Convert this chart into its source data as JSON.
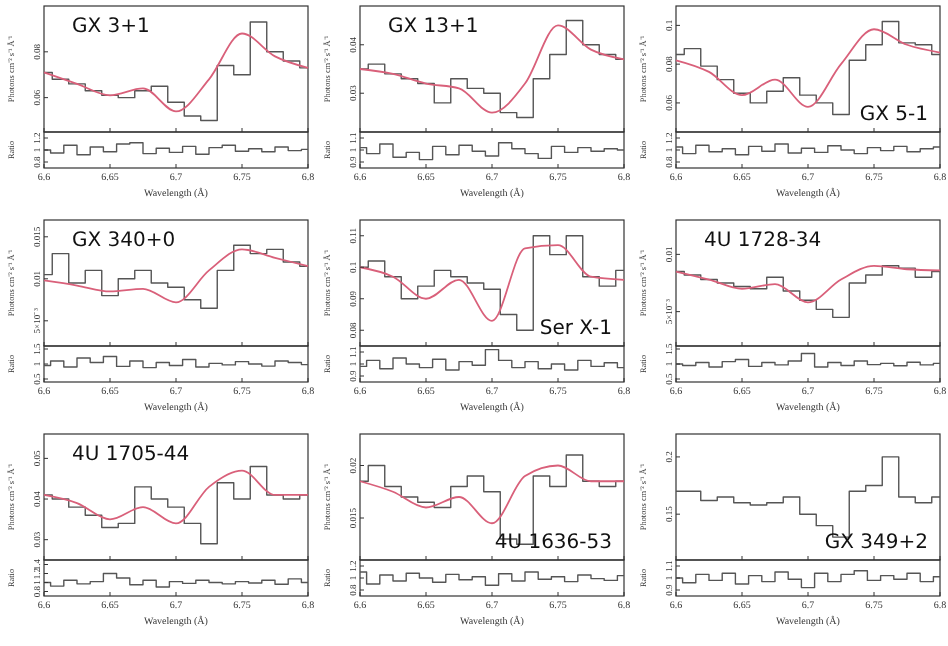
{
  "chart_data": [
    {
      "type": "step",
      "title": "GX 3+1",
      "ylabel": "Photons cm⁻² s⁻¹ Å⁻¹",
      "xlim": [
        6.6,
        6.8
      ],
      "xticks": [
        6.6,
        6.65,
        6.7,
        6.75,
        6.8
      ],
      "tick_labels": "y",
      "ylim": [
        0.045,
        0.1
      ],
      "yticks": [
        0.06,
        0.08
      ],
      "x": [
        6.6,
        6.6125,
        6.625,
        6.6375,
        6.65,
        6.6625,
        6.675,
        6.6875,
        6.7,
        6.7125,
        6.725,
        6.7375,
        6.75,
        6.7625,
        6.775,
        6.7875,
        6.8
      ],
      "series": [
        {
          "type": "step",
          "color": "#555555",
          "values": [
            0.071,
            0.068,
            0.066,
            0.063,
            0.061,
            0.06,
            0.063,
            0.065,
            0.058,
            0.052,
            0.05,
            0.074,
            0.07,
            0.093,
            0.08,
            0.076,
            0.073
          ]
        },
        {
          "type": "line",
          "color": "#d9607a",
          "x": [
            6.6,
            6.625,
            6.65,
            6.675,
            6.7,
            6.725,
            6.75,
            6.775,
            6.8
          ],
          "values": [
            0.071,
            0.066,
            0.061,
            0.064,
            0.054,
            0.068,
            0.088,
            0.078,
            0.073
          ]
        }
      ]
    },
    {
      "type": "step",
      "ylabel": "Ratio",
      "xlabel": "Wavelength (Å)",
      "xlim": [
        6.6,
        6.8
      ],
      "xticks": [
        6.6,
        6.65,
        6.7,
        6.75,
        6.8
      ],
      "ylim": [
        0.7,
        1.3
      ],
      "yticks": [
        0.8,
        1,
        1.2
      ],
      "x": [
        6.6,
        6.61,
        6.62,
        6.63,
        6.64,
        6.65,
        6.66,
        6.67,
        6.68,
        6.69,
        6.7,
        6.71,
        6.72,
        6.73,
        6.74,
        6.75,
        6.76,
        6.77,
        6.78,
        6.79,
        6.8
      ],
      "series": [
        {
          "type": "step",
          "color": "#555555",
          "values": [
            1,
            0.95,
            1.08,
            0.92,
            1.05,
            0.97,
            1.1,
            1.12,
            0.94,
            1.03,
            0.96,
            1.06,
            0.93,
            1.04,
            1.08,
            0.98,
            1.02,
            0.97,
            1.05,
            0.99,
            1.01
          ]
        }
      ]
    },
    {
      "type": "step",
      "title": "GX 13+1",
      "ylabel": "Photons cm⁻² s⁻¹ Å⁻¹",
      "xlim": [
        6.6,
        6.8
      ],
      "xticks": [
        6.6,
        6.65,
        6.7,
        6.75,
        6.8
      ],
      "tick_labels": "y",
      "ylim": [
        0.022,
        0.048
      ],
      "yticks": [
        0.03,
        0.04
      ],
      "x": [
        6.6,
        6.6125,
        6.625,
        6.6375,
        6.65,
        6.6625,
        6.675,
        6.6875,
        6.7,
        6.7125,
        6.725,
        6.7375,
        6.75,
        6.7625,
        6.775,
        6.7875,
        6.8
      ],
      "series": [
        {
          "type": "step",
          "color": "#555555",
          "values": [
            0.035,
            0.036,
            0.034,
            0.033,
            0.032,
            0.028,
            0.033,
            0.031,
            0.03,
            0.026,
            0.025,
            0.033,
            0.038,
            0.045,
            0.04,
            0.038,
            0.037
          ]
        },
        {
          "type": "line",
          "color": "#d9607a",
          "x": [
            6.6,
            6.625,
            6.65,
            6.675,
            6.7,
            6.725,
            6.75,
            6.775,
            6.8
          ],
          "values": [
            0.035,
            0.034,
            0.032,
            0.031,
            0.026,
            0.032,
            0.044,
            0.039,
            0.037
          ]
        }
      ]
    },
    {
      "type": "step",
      "ylabel": "Ratio",
      "xlabel": "Wavelength (Å)",
      "xlim": [
        6.6,
        6.8
      ],
      "xticks": [
        6.6,
        6.65,
        6.7,
        6.75,
        6.8
      ],
      "ylim": [
        0.85,
        1.15
      ],
      "yticks": [
        0.9,
        1,
        1.1
      ],
      "x": [
        6.6,
        6.61,
        6.62,
        6.63,
        6.64,
        6.65,
        6.66,
        6.67,
        6.68,
        6.69,
        6.7,
        6.71,
        6.72,
        6.73,
        6.74,
        6.75,
        6.76,
        6.77,
        6.78,
        6.79,
        6.8
      ],
      "series": [
        {
          "type": "step",
          "color": "#555555",
          "values": [
            1.02,
            0.97,
            1.05,
            0.94,
            0.98,
            0.92,
            1.03,
            0.96,
            1.04,
            0.99,
            0.95,
            1.06,
            1.01,
            0.97,
            0.93,
            1.03,
            0.98,
            1.02,
            0.99,
            1.01,
            1
          ]
        }
      ]
    },
    {
      "type": "step",
      "title": "GX 5-1",
      "ylabel": "Photons cm⁻² s⁻¹ Å⁻¹",
      "xlim": [
        6.6,
        6.8
      ],
      "xticks": [
        6.6,
        6.65,
        6.7,
        6.75,
        6.8
      ],
      "tick_labels": "y",
      "ylim": [
        0.045,
        0.11
      ],
      "yticks": [
        0.06,
        0.08,
        0.1
      ],
      "x": [
        6.6,
        6.6125,
        6.625,
        6.6375,
        6.65,
        6.6625,
        6.675,
        6.6875,
        6.7,
        6.7125,
        6.725,
        6.7375,
        6.75,
        6.7625,
        6.775,
        6.7875,
        6.8
      ],
      "series": [
        {
          "type": "step",
          "color": "#555555",
          "values": [
            0.085,
            0.088,
            0.079,
            0.072,
            0.065,
            0.06,
            0.066,
            0.073,
            0.064,
            0.06,
            0.054,
            0.082,
            0.09,
            0.102,
            0.091,
            0.09,
            0.085
          ]
        },
        {
          "type": "line",
          "color": "#d9607a",
          "x": [
            6.6,
            6.625,
            6.65,
            6.675,
            6.7,
            6.725,
            6.75,
            6.775,
            6.8
          ],
          "values": [
            0.082,
            0.076,
            0.064,
            0.072,
            0.058,
            0.08,
            0.098,
            0.09,
            0.086
          ]
        }
      ]
    },
    {
      "type": "step",
      "ylabel": "Ratio",
      "xlabel": "Wavelength (Å)",
      "xlim": [
        6.6,
        6.8
      ],
      "xticks": [
        6.6,
        6.65,
        6.7,
        6.75,
        6.8
      ],
      "ylim": [
        0.7,
        1.3
      ],
      "yticks": [
        0.8,
        1,
        1.2
      ],
      "x": [
        6.6,
        6.61,
        6.62,
        6.63,
        6.64,
        6.65,
        6.66,
        6.67,
        6.68,
        6.69,
        6.7,
        6.71,
        6.72,
        6.73,
        6.74,
        6.75,
        6.76,
        6.77,
        6.78,
        6.79,
        6.8
      ],
      "series": [
        {
          "type": "step",
          "color": "#555555",
          "values": [
            1.05,
            0.94,
            1.08,
            0.97,
            1.02,
            0.92,
            1.06,
            0.98,
            1.1,
            0.95,
            1.03,
            0.96,
            1.07,
            1,
            0.94,
            1.04,
            0.99,
            1.06,
            0.97,
            1.02,
            1.05
          ]
        }
      ]
    },
    {
      "type": "step",
      "title": "GX 340+0",
      "ylabel": "Photons cm⁻² s⁻¹ Å⁻¹",
      "xlim": [
        6.6,
        6.8
      ],
      "xticks": [
        6.6,
        6.65,
        6.7,
        6.75,
        6.8
      ],
      "tick_labels": "y",
      "ylim": [
        0.002,
        0.017
      ],
      "yticks": [
        {
          "value": 0.005,
          "label": "5×10⁻³"
        },
        0.01,
        0.015
      ],
      "x": [
        6.6,
        6.6125,
        6.625,
        6.6375,
        6.65,
        6.6625,
        6.675,
        6.6875,
        6.7,
        6.7125,
        6.725,
        6.7375,
        6.75,
        6.7625,
        6.775,
        6.7875,
        6.8
      ],
      "series": [
        {
          "type": "step",
          "color": "#555555",
          "values": [
            0.0105,
            0.013,
            0.0095,
            0.011,
            0.008,
            0.01,
            0.011,
            0.0095,
            0.009,
            0.0075,
            0.0065,
            0.011,
            0.014,
            0.013,
            0.0135,
            0.012,
            0.0115
          ]
        },
        {
          "type": "line",
          "color": "#d9607a",
          "x": [
            6.6,
            6.625,
            6.65,
            6.675,
            6.7,
            6.725,
            6.75,
            6.775,
            6.8
          ],
          "values": [
            0.0098,
            0.0092,
            0.0085,
            0.0088,
            0.0072,
            0.011,
            0.0135,
            0.0125,
            0.0115
          ]
        }
      ]
    },
    {
      "type": "step",
      "ylabel": "Ratio",
      "xlabel": "Wavelength (Å)",
      "xlim": [
        6.6,
        6.8
      ],
      "xticks": [
        6.6,
        6.65,
        6.7,
        6.75,
        6.8
      ],
      "ylim": [
        0.4,
        1.6
      ],
      "yticks": [
        0.5,
        1,
        1.5
      ],
      "x": [
        6.6,
        6.61,
        6.62,
        6.63,
        6.64,
        6.65,
        6.66,
        6.67,
        6.68,
        6.69,
        6.7,
        6.71,
        6.72,
        6.73,
        6.74,
        6.75,
        6.76,
        6.77,
        6.78,
        6.79,
        6.8
      ],
      "series": [
        {
          "type": "step",
          "color": "#555555",
          "values": [
            0.95,
            1.1,
            0.9,
            1.2,
            1.05,
            1.25,
            0.92,
            1.1,
            0.88,
            1.05,
            0.95,
            1.15,
            0.9,
            1.02,
            0.97,
            1.08,
            1,
            0.93,
            1.1,
            1.05,
            0.98
          ]
        }
      ]
    },
    {
      "type": "step",
      "title": "Ser X-1",
      "ylabel": "Photons cm⁻² s⁻¹ Å⁻¹",
      "xlim": [
        6.6,
        6.8
      ],
      "xticks": [
        6.6,
        6.65,
        6.7,
        6.75,
        6.8
      ],
      "tick_labels": "y",
      "ylim": [
        0.075,
        0.115
      ],
      "yticks": [
        0.08,
        0.09,
        0.1,
        0.11
      ],
      "x": [
        6.6,
        6.6125,
        6.625,
        6.6375,
        6.65,
        6.6625,
        6.675,
        6.6875,
        6.7,
        6.7125,
        6.725,
        6.7375,
        6.75,
        6.7625,
        6.775,
        6.7875,
        6.8
      ],
      "series": [
        {
          "type": "step",
          "color": "#555555",
          "values": [
            0.1,
            0.102,
            0.097,
            0.09,
            0.094,
            0.099,
            0.097,
            0.095,
            0.093,
            0.085,
            0.08,
            0.11,
            0.104,
            0.11,
            0.097,
            0.094,
            0.099
          ]
        },
        {
          "type": "line",
          "color": "#d9607a",
          "x": [
            6.6,
            6.625,
            6.65,
            6.675,
            6.7,
            6.725,
            6.75,
            6.775,
            6.8
          ],
          "values": [
            0.1,
            0.097,
            0.09,
            0.096,
            0.083,
            0.106,
            0.107,
            0.097,
            0.096
          ]
        }
      ]
    },
    {
      "type": "step",
      "ylabel": "Ratio",
      "xlabel": "Wavelength (Å)",
      "xlim": [
        6.6,
        6.8
      ],
      "xticks": [
        6.6,
        6.65,
        6.7,
        6.75,
        6.8
      ],
      "ylim": [
        0.85,
        1.15
      ],
      "yticks": [
        0.9,
        1,
        1.1
      ],
      "x": [
        6.6,
        6.61,
        6.62,
        6.63,
        6.64,
        6.65,
        6.66,
        6.67,
        6.68,
        6.69,
        6.7,
        6.71,
        6.72,
        6.73,
        6.74,
        6.75,
        6.76,
        6.77,
        6.78,
        6.79,
        6.8
      ],
      "series": [
        {
          "type": "step",
          "color": "#555555",
          "values": [
            0.98,
            1.03,
            0.96,
            1.05,
            1,
            0.97,
            1.04,
            0.95,
            1.02,
            0.99,
            1.12,
            1.03,
            0.97,
            1.02,
            0.96,
            1,
            0.95,
            1.03,
            0.98,
            1.01,
            0.97
          ]
        }
      ]
    },
    {
      "type": "step",
      "title": "4U 1728-34",
      "ylabel": "Photons cm⁻² s⁻¹ Å⁻¹",
      "xlim": [
        6.6,
        6.8
      ],
      "xticks": [
        6.6,
        6.65,
        6.7,
        6.75,
        6.8
      ],
      "tick_labels": "y",
      "ylim": [
        0.002,
        0.013
      ],
      "yticks": [
        {
          "value": 0.005,
          "label": "5×10⁻³"
        },
        0.01
      ],
      "x": [
        6.6,
        6.6125,
        6.625,
        6.6375,
        6.65,
        6.6625,
        6.675,
        6.6875,
        6.7,
        6.7125,
        6.725,
        6.7375,
        6.75,
        6.7625,
        6.775,
        6.7875,
        6.8
      ],
      "series": [
        {
          "type": "step",
          "color": "#555555",
          "values": [
            0.0085,
            0.0082,
            0.0078,
            0.0075,
            0.0072,
            0.007,
            0.008,
            0.0068,
            0.006,
            0.0052,
            0.0045,
            0.0075,
            0.0082,
            0.009,
            0.0088,
            0.008,
            0.0085
          ]
        },
        {
          "type": "line",
          "color": "#d9607a",
          "x": [
            6.6,
            6.625,
            6.65,
            6.675,
            6.7,
            6.725,
            6.75,
            6.775,
            6.8
          ],
          "values": [
            0.0085,
            0.0078,
            0.007,
            0.0074,
            0.0058,
            0.0078,
            0.009,
            0.0087,
            0.0086
          ]
        }
      ]
    },
    {
      "type": "step",
      "ylabel": "Ratio",
      "xlabel": "Wavelength (Å)",
      "xlim": [
        6.6,
        6.8
      ],
      "xticks": [
        6.6,
        6.65,
        6.7,
        6.75,
        6.8
      ],
      "ylim": [
        0.4,
        1.6
      ],
      "yticks": [
        0.5,
        1,
        1.5
      ],
      "x": [
        6.6,
        6.61,
        6.62,
        6.63,
        6.64,
        6.65,
        6.66,
        6.67,
        6.68,
        6.69,
        6.7,
        6.71,
        6.72,
        6.73,
        6.74,
        6.75,
        6.76,
        6.77,
        6.78,
        6.79,
        6.8
      ],
      "series": [
        {
          "type": "step",
          "color": "#555555",
          "values": [
            1,
            0.95,
            1.05,
            0.9,
            1.08,
            1.15,
            0.92,
            1.05,
            0.97,
            1.1,
            1.35,
            0.9,
            1.05,
            0.95,
            1.1,
            0.98,
            1.02,
            0.94,
            1.06,
            0.97,
            1.02
          ]
        }
      ]
    },
    {
      "type": "step",
      "title": "4U 1705-44",
      "ylabel": "Photons cm⁻² s⁻¹ Å⁻¹",
      "xlim": [
        6.6,
        6.8
      ],
      "xticks": [
        6.6,
        6.65,
        6.7,
        6.75,
        6.8
      ],
      "tick_labels": "y",
      "ylim": [
        0.025,
        0.056
      ],
      "yticks": [
        0.03,
        0.04,
        0.05
      ],
      "x": [
        6.6,
        6.6125,
        6.625,
        6.6375,
        6.65,
        6.6625,
        6.675,
        6.6875,
        6.7,
        6.7125,
        6.725,
        6.7375,
        6.75,
        6.7625,
        6.775,
        6.7875,
        6.8
      ],
      "series": [
        {
          "type": "step",
          "color": "#555555",
          "values": [
            0.041,
            0.04,
            0.038,
            0.036,
            0.033,
            0.034,
            0.043,
            0.04,
            0.038,
            0.034,
            0.029,
            0.044,
            0.04,
            0.048,
            0.041,
            0.04,
            0.041
          ]
        },
        {
          "type": "line",
          "color": "#d9607a",
          "x": [
            6.6,
            6.625,
            6.65,
            6.675,
            6.7,
            6.725,
            6.75,
            6.775,
            6.8
          ],
          "values": [
            0.041,
            0.039,
            0.035,
            0.038,
            0.034,
            0.043,
            0.047,
            0.041,
            0.041
          ]
        }
      ]
    },
    {
      "type": "step",
      "ylabel": "Ratio",
      "xlabel": "Wavelength (Å)",
      "xlim": [
        6.6,
        6.8
      ],
      "xticks": [
        6.6,
        6.65,
        6.7,
        6.75,
        6.8
      ],
      "ylim": [
        0.7,
        1.5
      ],
      "yticks": [
        0.8,
        1,
        1.2,
        1.4
      ],
      "x": [
        6.6,
        6.61,
        6.62,
        6.63,
        6.64,
        6.65,
        6.66,
        6.67,
        6.68,
        6.69,
        6.7,
        6.71,
        6.72,
        6.73,
        6.74,
        6.75,
        6.76,
        6.77,
        6.78,
        6.79,
        6.8
      ],
      "series": [
        {
          "type": "step",
          "color": "#555555",
          "values": [
            1,
            0.92,
            1.05,
            0.97,
            1.02,
            1.2,
            1.1,
            0.95,
            1.05,
            0.9,
            1.02,
            0.98,
            1.05,
            1,
            0.97,
            1.02,
            0.99,
            1.05,
            0.96,
            1.08,
            1
          ]
        }
      ]
    },
    {
      "type": "step",
      "title": "4U 1636-53",
      "ylabel": "Photons cm⁻² s⁻¹ Å⁻¹",
      "xlim": [
        6.6,
        6.8
      ],
      "xticks": [
        6.6,
        6.65,
        6.7,
        6.75,
        6.8
      ],
      "tick_labels": "y",
      "ylim": [
        0.011,
        0.023
      ],
      "yticks": [
        0.015,
        0.02
      ],
      "x": [
        6.6,
        6.6125,
        6.625,
        6.6375,
        6.65,
        6.6625,
        6.675,
        6.6875,
        6.7,
        6.7125,
        6.725,
        6.7375,
        6.75,
        6.7625,
        6.775,
        6.7875,
        6.8
      ],
      "series": [
        {
          "type": "step",
          "color": "#555555",
          "values": [
            0.0185,
            0.02,
            0.018,
            0.017,
            0.0165,
            0.016,
            0.018,
            0.019,
            0.0175,
            0.013,
            0.0125,
            0.019,
            0.018,
            0.021,
            0.0185,
            0.018,
            0.0185
          ]
        },
        {
          "type": "line",
          "color": "#d9607a",
          "x": [
            6.6,
            6.625,
            6.65,
            6.675,
            6.7,
            6.725,
            6.75,
            6.775,
            6.8
          ],
          "values": [
            0.0185,
            0.0175,
            0.016,
            0.017,
            0.0145,
            0.019,
            0.02,
            0.0185,
            0.0185
          ]
        }
      ]
    },
    {
      "type": "step",
      "ylabel": "Ratio",
      "xlabel": "Wavelength (Å)",
      "xlim": [
        6.6,
        6.8
      ],
      "xticks": [
        6.6,
        6.65,
        6.7,
        6.75,
        6.8
      ],
      "ylim": [
        0.7,
        1.3
      ],
      "yticks": [
        0.8,
        1,
        1.2
      ],
      "x": [
        6.6,
        6.61,
        6.62,
        6.63,
        6.64,
        6.65,
        6.66,
        6.67,
        6.68,
        6.69,
        6.7,
        6.71,
        6.72,
        6.73,
        6.74,
        6.75,
        6.76,
        6.77,
        6.78,
        6.79,
        6.8
      ],
      "series": [
        {
          "type": "step",
          "color": "#555555",
          "values": [
            1.1,
            0.9,
            1.05,
            0.95,
            1.08,
            1,
            0.93,
            1.06,
            0.97,
            1.02,
            0.88,
            1.07,
            0.95,
            1.1,
            0.98,
            1.02,
            0.94,
            1.05,
            0.99,
            0.96,
            1.04
          ]
        }
      ]
    },
    {
      "type": "step",
      "title": "GX 349+2",
      "ylabel": "Photons cm⁻² s⁻¹ Å⁻¹",
      "xlim": [
        6.6,
        6.8
      ],
      "xticks": [
        6.6,
        6.65,
        6.7,
        6.75,
        6.8
      ],
      "tick_labels": "y",
      "ylim": [
        0.11,
        0.22
      ],
      "yticks": [
        0.15,
        0.2
      ],
      "x": [
        6.6,
        6.6125,
        6.625,
        6.6375,
        6.65,
        6.6625,
        6.675,
        6.6875,
        6.7,
        6.7125,
        6.725,
        6.7375,
        6.75,
        6.7625,
        6.775,
        6.7875,
        6.8
      ],
      "series": [
        {
          "type": "step",
          "color": "#555555",
          "values": [
            0.17,
            0.17,
            0.162,
            0.165,
            0.16,
            0.158,
            0.16,
            0.165,
            0.15,
            0.14,
            0.13,
            0.17,
            0.175,
            0.2,
            0.165,
            0.16,
            0.165
          ]
        }
      ]
    },
    {
      "type": "step",
      "ylabel": "Ratio",
      "xlabel": "Wavelength (Å)",
      "xlim": [
        6.6,
        6.8
      ],
      "xticks": [
        6.6,
        6.65,
        6.7,
        6.75,
        6.8
      ],
      "ylim": [
        0.85,
        1.15
      ],
      "yticks": [
        0.9,
        1,
        1.1
      ],
      "x": [
        6.6,
        6.61,
        6.62,
        6.63,
        6.64,
        6.65,
        6.66,
        6.67,
        6.68,
        6.69,
        6.7,
        6.71,
        6.72,
        6.73,
        6.74,
        6.75,
        6.76,
        6.77,
        6.78,
        6.79,
        6.8
      ],
      "series": [
        {
          "type": "step",
          "color": "#555555",
          "values": [
            1,
            0.96,
            1.03,
            0.98,
            1.04,
            0.95,
            1.02,
            0.97,
            1.05,
            0.99,
            0.92,
            1.04,
            0.97,
            1.03,
            1.06,
            0.98,
            1.02,
            0.99,
            1.04,
            0.97,
            1.01
          ]
        }
      ]
    }
  ]
}
